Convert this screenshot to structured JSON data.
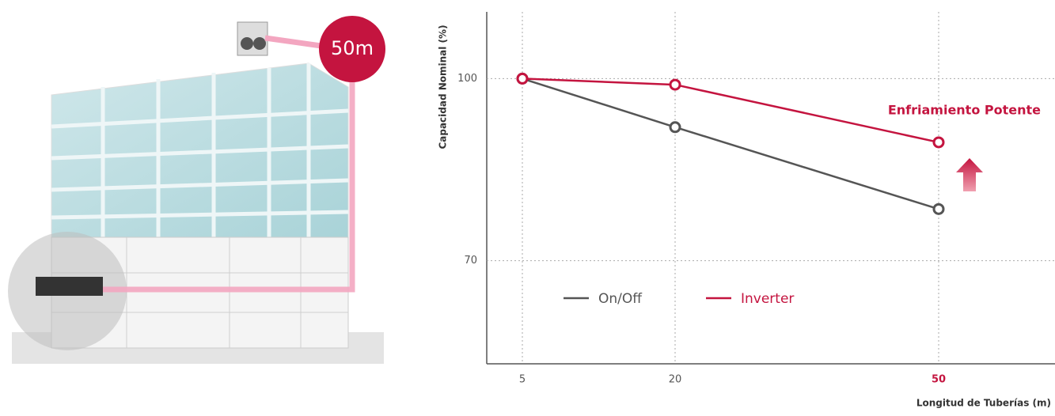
{
  "illustration": {
    "badge": "50m"
  },
  "chart_data": {
    "type": "line",
    "x_label": "Longitud de Tuberías (m)",
    "y_label": "Capacidad Nominal (%)",
    "categories": [
      "5",
      "20",
      "50"
    ],
    "series": [
      {
        "name": "On/Off",
        "color": "#555555",
        "values": [
          100,
          92,
          78.5
        ]
      },
      {
        "name": "Inverter",
        "color": "#c4143f",
        "values": [
          100,
          99,
          89.5
        ]
      }
    ],
    "ylim": [
      53,
      111
    ],
    "yticks": [
      70,
      100
    ],
    "grid": true,
    "annotation": "Enfriamiento Potente"
  }
}
